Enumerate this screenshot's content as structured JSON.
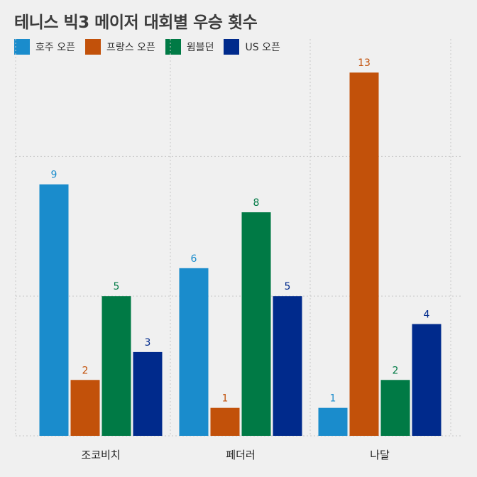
{
  "title": "테니스 빅3 메이저 대회별 우승 횟수",
  "colors": {
    "background": "#f0f0f0",
    "grid": "#c8c8c8",
    "title": "#3c3c3c",
    "axis_text": "#222222"
  },
  "chart_data": {
    "type": "bar",
    "title": "테니스 빅3 메이저 대회별 우승 횟수",
    "xlabel": "",
    "ylabel": "",
    "categories": [
      "조코비치",
      "페더러",
      "나달"
    ],
    "series": [
      {
        "name": "호주 오픈",
        "color": "#1a8ccc",
        "values": [
          9,
          6,
          1
        ]
      },
      {
        "name": "프랑스 오픈",
        "color": "#c2510a",
        "values": [
          2,
          1,
          13
        ]
      },
      {
        "name": "윔블던",
        "color": "#007a45",
        "values": [
          5,
          8,
          2
        ]
      },
      {
        "name": "US 오픈",
        "color": "#002a8c",
        "values": [
          3,
          5,
          4
        ]
      }
    ],
    "ylim": [
      0,
      14.2
    ],
    "y_gridlines": [
      0,
      5,
      10
    ],
    "y_tick_labels_shown": false,
    "grid": true,
    "legend": "top-left",
    "data_labels": true
  }
}
